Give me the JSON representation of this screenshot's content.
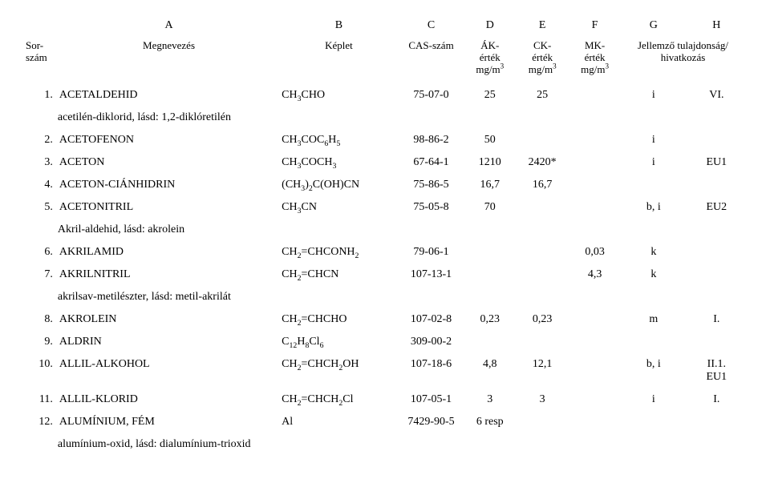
{
  "letters": {
    "A": "A",
    "B": "B",
    "C": "C",
    "D": "D",
    "E": "E",
    "F": "F",
    "G": "G",
    "H": "H"
  },
  "headers": {
    "num_l1": "Sor-",
    "num_l2": "szám",
    "name": "Megnevezés",
    "form": "Képlet",
    "cas": "CAS-szám",
    "ak_l1": "ÁK-",
    "ak_l2": "érték",
    "ck_l1": "CK-",
    "ck_l2": "érték",
    "mk_l1": "MK-",
    "mk_l2": "érték",
    "unit_pre": "mg/m",
    "unit_sup": "3",
    "prop_l1": "Jellemző tulajdonság/",
    "prop_l2": "hivatkozás"
  },
  "rows": [
    {
      "num": "1.",
      "name": "ACETALDEHID",
      "form_html": "CH<sub>3</sub>CHO",
      "cas": "75-07-0",
      "ak": "25",
      "ck": "25",
      "mk": "",
      "prop": "i",
      "ref": "VI."
    },
    {
      "note": "acetilén-diklorid, lásd: 1,2-diklóretilén"
    },
    {
      "num": "2.",
      "name": "ACETOFENON",
      "form_html": "CH<sub>3</sub>COC<sub>6</sub>H<sub>5</sub>",
      "cas": "98-86-2",
      "ak": "50",
      "ck": "",
      "mk": "",
      "prop": "i",
      "ref": ""
    },
    {
      "num": "3.",
      "name": "ACETON",
      "form_html": "CH<sub>3</sub>COCH<sub>3</sub>",
      "cas": "67-64-1",
      "ak": "1210",
      "ck": "2420*",
      "mk": "",
      "prop": "i",
      "ref": "EU1"
    },
    {
      "num": "4.",
      "name": "ACETON-CIÁNHIDRIN",
      "form_html": "(CH<sub>3</sub>)<sub>2</sub>C(OH)CN",
      "cas": "75-86-5",
      "ak": "16,7",
      "ck": "16,7",
      "mk": "",
      "prop": "",
      "ref": ""
    },
    {
      "num": "5.",
      "name": "ACETONITRIL",
      "form_html": "CH<sub>3</sub>CN",
      "cas": "75-05-8",
      "ak": "70",
      "ck": "",
      "mk": "",
      "prop": "b, i",
      "ref": "EU2"
    },
    {
      "note": "Akril-aldehid, lásd: akrolein"
    },
    {
      "num": "6.",
      "name": "AKRILAMID",
      "form_html": "CH<sub>2</sub>=CHCONH<sub>2</sub>",
      "cas": "79-06-1",
      "ak": "",
      "ck": "",
      "mk": "0,03",
      "prop": "k",
      "ref": ""
    },
    {
      "num": "7.",
      "name": "AKRILNITRIL",
      "form_html": "CH<sub>2</sub>=CHCN",
      "cas": "107-13-1",
      "ak": "",
      "ck": "",
      "mk": "4,3",
      "prop": "k",
      "ref": ""
    },
    {
      "note": "akrilsav-metilészter, lásd: metil-akrilát"
    },
    {
      "num": "8.",
      "name": "AKROLEIN",
      "form_html": "CH<sub>2</sub>=CHCHO",
      "cas": "107-02-8",
      "ak": "0,23",
      "ck": "0,23",
      "mk": "",
      "prop": "m",
      "ref": "I."
    },
    {
      "num": "9.",
      "name": "ALDRIN",
      "form_html": "C<sub>12</sub>H<sub>8</sub>Cl<sub>6</sub>",
      "cas": "309-00-2",
      "ak": "",
      "ck": "",
      "mk": "",
      "prop": "",
      "ref": ""
    },
    {
      "num": "10.",
      "name": "ALLIL-ALKOHOL",
      "form_html": "CH<sub>2</sub>=CHCH<sub>2</sub>OH",
      "cas": "107-18-6",
      "ak": "4,8",
      "ck": "12,1",
      "mk": "",
      "prop": "b, i",
      "ref": "II.1.\nEU1"
    },
    {
      "num": "11.",
      "name": "ALLIL-KLORID",
      "form_html": "CH<sub>2</sub>=CHCH<sub>2</sub>Cl",
      "cas": "107-05-1",
      "ak": "3",
      "ck": "3",
      "mk": "",
      "prop": "i",
      "ref": "I."
    },
    {
      "num": "12.",
      "name": "ALUMÍNIUM, FÉM",
      "form_html": "Al",
      "cas": "7429-90-5",
      "ak": "6 resp",
      "ck": "",
      "mk": "",
      "prop": "",
      "ref": ""
    },
    {
      "note": "alumínium-oxid, lásd: dialumínium-trioxid"
    }
  ]
}
